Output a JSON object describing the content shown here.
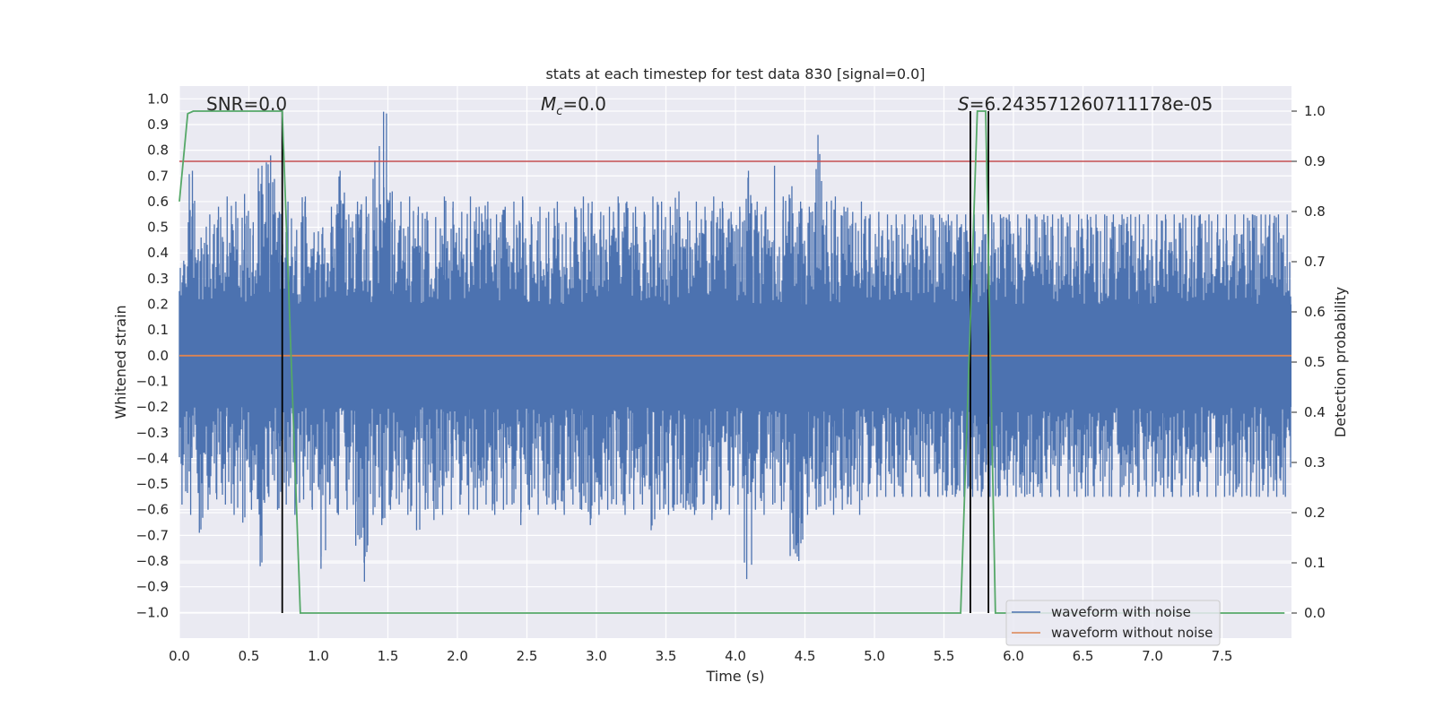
{
  "chart_data": {
    "type": "line",
    "title": "stats at each timestep for test data 830 [signal=0.0]",
    "xlabel": "Time (s)",
    "ylabel": "Whitened strain",
    "y2label": "Detection probability",
    "xlim": [
      0.0,
      8.0
    ],
    "ylim": [
      -1.1,
      1.05
    ],
    "y2lim": [
      -0.05,
      1.05
    ],
    "x_ticks": [
      "0.0",
      "0.5",
      "1.0",
      "1.5",
      "2.0",
      "2.5",
      "3.0",
      "3.5",
      "4.0",
      "4.5",
      "5.0",
      "5.5",
      "6.0",
      "6.5",
      "7.0",
      "7.5"
    ],
    "y_ticks": [
      "1.0",
      "0.9",
      "0.8",
      "0.7",
      "0.6",
      "0.5",
      "0.4",
      "0.3",
      "0.2",
      "0.1",
      "0.0",
      "−0.1",
      "−0.2",
      "−0.3",
      "−0.4",
      "−0.5",
      "−0.6",
      "−0.7",
      "−0.8",
      "−0.9",
      "−1.0"
    ],
    "y2_ticks": [
      "1.0",
      "0.9",
      "0.8",
      "0.7",
      "0.6",
      "0.5",
      "0.4",
      "0.3",
      "0.2",
      "0.1",
      "0.0"
    ],
    "grid": true,
    "legend_position": "lower-right",
    "annotations": {
      "snr": "SNR=0.0",
      "mc_symbol": "M",
      "mc_sub": "c",
      "mc_value": "=0.0",
      "s_symbol": "S",
      "s_value": "=6.243571260711178e-05"
    },
    "series": [
      {
        "name": "waveform with noise",
        "color": "#4c72b0",
        "envelope_step_s": 0.0625,
        "upper": [
          0.37,
          0.72,
          0.46,
          0.55,
          0.58,
          0.62,
          0.6,
          0.63,
          0.52,
          0.74,
          0.78,
          0.56,
          0.6,
          0.49,
          0.62,
          0.48,
          0.5,
          0.58,
          0.72,
          0.55,
          0.6,
          0.62,
          0.76,
          0.95,
          0.64,
          0.6,
          0.62,
          0.58,
          0.56,
          0.54,
          0.62,
          0.6,
          0.56,
          0.62,
          0.58,
          0.6,
          0.55,
          0.58,
          0.6,
          0.62,
          0.54,
          0.58,
          0.56,
          0.6,
          0.52,
          0.58,
          0.62,
          0.6,
          0.56,
          0.58,
          0.62,
          0.6,
          0.58,
          0.56,
          0.62,
          0.6,
          0.58,
          0.64,
          0.56,
          0.6,
          0.58,
          0.62,
          0.6,
          0.56,
          0.58,
          0.72,
          0.6,
          0.58,
          0.74,
          0.62,
          0.66,
          0.6,
          0.58,
          0.86,
          0.6,
          0.62,
          0.58,
          0.56,
          0.6,
          0.55,
          0.56,
          0.55,
          0.55,
          0.55,
          0.55,
          0.55,
          0.55,
          0.55,
          0.55,
          0.55,
          0.55,
          0.55,
          0.55,
          0.55,
          0.55,
          0.55,
          0.55,
          0.55,
          0.55,
          0.55,
          0.55,
          0.55,
          0.55,
          0.55,
          0.55,
          0.55,
          0.55,
          0.55,
          0.55,
          0.55,
          0.55,
          0.55,
          0.55,
          0.55,
          0.55,
          0.55,
          0.55,
          0.55,
          0.55,
          0.55,
          0.55,
          0.55,
          0.55,
          0.55,
          0.55,
          0.55,
          0.55,
          0.55
        ],
        "lower": [
          -0.58,
          -0.62,
          -0.69,
          -0.6,
          -0.56,
          -0.58,
          -0.62,
          -0.65,
          -0.6,
          -0.82,
          -0.55,
          -0.6,
          -0.58,
          -0.62,
          -0.56,
          -0.6,
          -0.83,
          -0.58,
          -0.62,
          -0.6,
          -0.74,
          -0.88,
          -0.62,
          -0.66,
          -0.6,
          -0.58,
          -0.62,
          -0.68,
          -0.6,
          -0.64,
          -0.62,
          -0.6,
          -0.58,
          -0.62,
          -0.6,
          -0.58,
          -0.62,
          -0.6,
          -0.58,
          -0.66,
          -0.6,
          -0.62,
          -0.58,
          -0.6,
          -0.62,
          -0.58,
          -0.6,
          -0.66,
          -0.62,
          -0.6,
          -0.58,
          -0.62,
          -0.6,
          -0.58,
          -0.68,
          -0.6,
          -0.62,
          -0.58,
          -0.6,
          -0.62,
          -0.58,
          -0.64,
          -0.6,
          -0.62,
          -0.58,
          -0.87,
          -0.6,
          -0.62,
          -0.58,
          -0.6,
          -0.78,
          -0.8,
          -0.62,
          -0.6,
          -0.58,
          -0.62,
          -0.6,
          -0.58,
          -0.62,
          -0.55,
          -0.55,
          -0.55,
          -0.55,
          -0.55,
          -0.55,
          -0.55,
          -0.55,
          -0.55,
          -0.55,
          -0.55,
          -0.55,
          -0.55,
          -0.55,
          -0.55,
          -0.55,
          -0.55,
          -0.55,
          -0.55,
          -0.55,
          -0.55,
          -0.55,
          -0.55,
          -0.55,
          -0.55,
          -0.55,
          -0.55,
          -0.55,
          -0.55,
          -0.55,
          -0.55,
          -0.55,
          -0.55,
          -0.55,
          -0.55,
          -0.55,
          -0.55,
          -0.55,
          -0.55,
          -0.55,
          -0.55,
          -0.55,
          -0.55,
          -0.55,
          -0.55,
          -0.55,
          -0.55,
          -0.55,
          -0.55
        ]
      },
      {
        "name": "waveform without noise",
        "color": "#dd8452",
        "x": [
          0.0,
          8.0
        ],
        "y": [
          0.0,
          0.0
        ]
      },
      {
        "color": "#55a868",
        "axis": "right",
        "x": [
          0.0,
          0.06,
          0.1,
          0.74,
          0.87,
          5.62,
          5.74,
          5.8,
          5.87,
          7.95
        ],
        "y": [
          0.82,
          0.995,
          1.0,
          1.0,
          0.0,
          0.0,
          1.0,
          1.0,
          0.0,
          0.0
        ]
      }
    ],
    "threshold": {
      "axis": "right",
      "value": 0.9,
      "color": "#c44e52"
    },
    "markers": [
      {
        "x": 0.74,
        "y_top": 1.0,
        "color": "#000000"
      },
      {
        "x": 5.69,
        "y_top": 1.0,
        "color": "#000000"
      },
      {
        "x": 5.82,
        "y_top": 1.0,
        "color": "#000000"
      }
    ]
  }
}
